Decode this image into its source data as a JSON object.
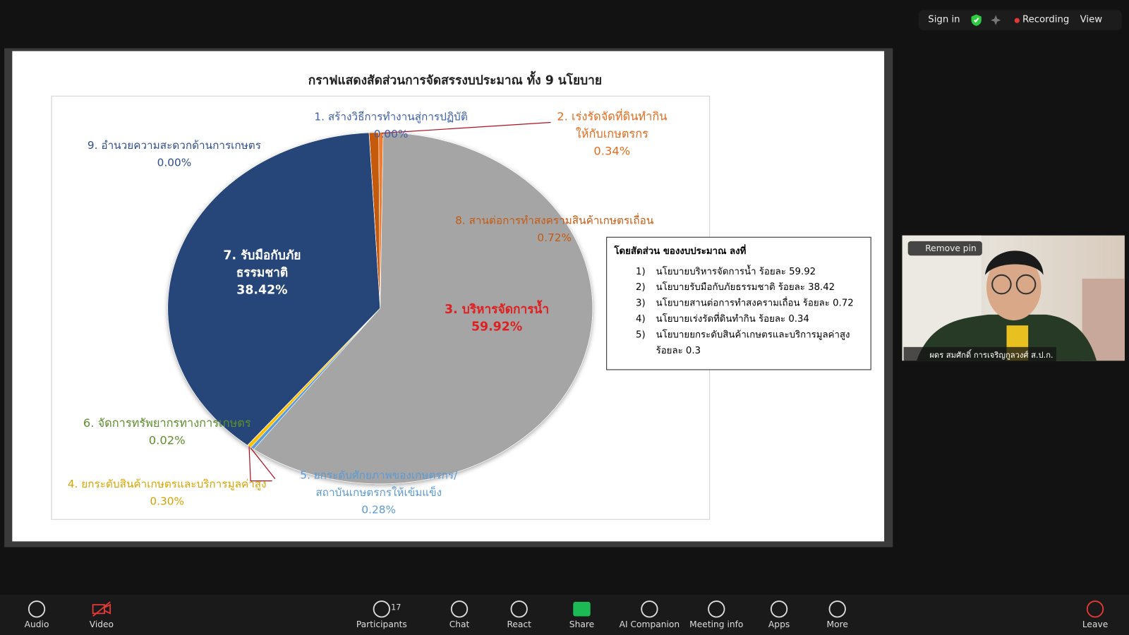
{
  "meeting": {
    "sign_in": "Sign in",
    "recording": "Recording",
    "view": "View"
  },
  "chart_data": {
    "type": "pie",
    "title": "กราฟแสดงสัดส่วนการจัดสรรงบประมาณ ทั้ง 9 นโยบาย",
    "categories": [
      "1. สร้างวิธีการทำงานสู่การปฏิบัติ",
      "8. สานต่อการทำสงครามสินค้าเกษตรเถื่อน",
      "2. เร่งรัดจัดที่ดินทำกินให้กับเกษตรกร",
      "3. บริหารจัดการน้ำ",
      "5. ยกระดับศักยภาพของเกษตรกร/สถาบันเกษตรกรให้เข้มแข็ง",
      "4. ยกระดับสินค้าเกษตรและบริการมูลค่าสูง",
      "6. จัดการทรัพยากรทางการเกษตร",
      "7. รับมือกับภัยธรรมชาติ",
      "9. อำนวยความสะดวกด้านการเกษตร"
    ],
    "values": [
      0,
      0.72,
      0.34,
      59.92,
      0.28,
      0.3,
      0.02,
      38.42,
      0
    ],
    "value_labels": [
      "0.00%",
      "0.72%",
      "0.34%",
      "59.92%",
      "0.28%",
      "0.30%",
      "0.02%",
      "38.42%",
      "0.00%"
    ],
    "colors": [
      "#4472c4",
      "#c55a11",
      "#ed7d31",
      "#a5a5a5",
      "#5b9bd5",
      "#ffc000",
      "#70ad47",
      "#264478",
      "#9e480e"
    ],
    "label_colors": [
      "#3d5fa8",
      "#c55a11",
      "#e46c1d",
      "#e02020",
      "#5b9bd5",
      "#d9a400",
      "#5e8f2e",
      "#ffffff",
      "#2f4f8f"
    ]
  },
  "legend_box": {
    "title": "โดยสัดส่วน ของงบประมาณ ลงที่",
    "items": [
      {
        "marker": "1)",
        "text": "นโยบายบริหารจัดการน้ำ ร้อยละ 59.92"
      },
      {
        "marker": "2)",
        "text": "นโยบายรับมือกับภัยธรรมชาติ ร้อยละ 38.42"
      },
      {
        "marker": "3)",
        "text": "นโยบายสานต่อการทำสงครามเถื่อน ร้อยละ 0.72"
      },
      {
        "marker": "4)",
        "text": "นโยบายเร่งรัดที่ดินทำกิน ร้อยละ 0.34"
      },
      {
        "marker": "5)",
        "text": "นโยบายยกระดับสินค้าเกษตรและบริการมูลค่าสูง ร้อยละ 0.3"
      }
    ]
  },
  "video_tile": {
    "pin_button": "Remove pin",
    "participant_name": "ผดร สมศักดิ์ การเจริญกูลวงศ์ ส.ป.ก."
  },
  "toolbar": {
    "participants_count": 17,
    "items": [
      "Audio",
      "Video",
      "Participants",
      "Chat",
      "React",
      "Share",
      "AI Companion",
      "Meeting info",
      "Apps",
      "More",
      "Leave"
    ]
  }
}
